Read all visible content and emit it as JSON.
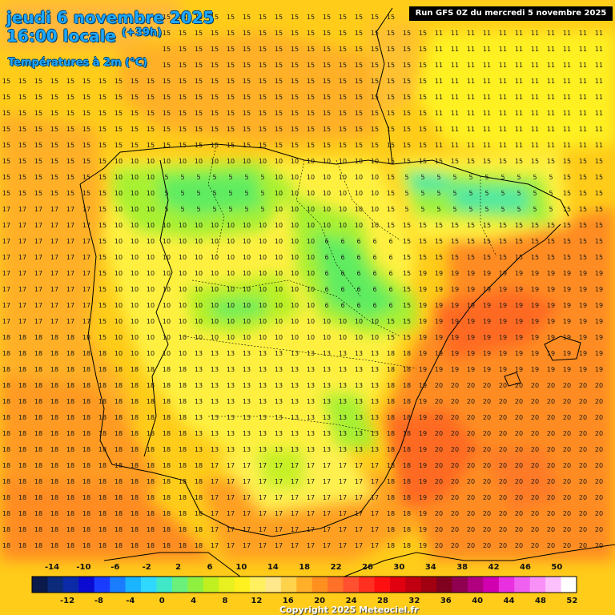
{
  "header": {
    "date": "jeudi 6 novembre 2025",
    "time": "16:00 locale",
    "offset": "(+39h)",
    "variable": "Températures à 2m (°C)",
    "run": "Run GFS 0Z du mercredi 5 novembre 2025"
  },
  "legend": {
    "top_labels": [
      "-14",
      "-10",
      "-6",
      "-2",
      "2",
      "6",
      "10",
      "14",
      "18",
      "22",
      "26",
      "30",
      "34",
      "38",
      "42",
      "46",
      "50"
    ],
    "bottom_labels": [
      "-12",
      "-8",
      "-4",
      "0",
      "4",
      "8",
      "12",
      "16",
      "20",
      "24",
      "28",
      "32",
      "36",
      "40",
      "44",
      "48",
      "52"
    ],
    "colors": [
      "#0a1a4a",
      "#0b2a7a",
      "#0b2aa8",
      "#0a0ad0",
      "#1a3cff",
      "#1a7cff",
      "#1ab4ff",
      "#30d8ff",
      "#40e8c8",
      "#6cf07c",
      "#90f040",
      "#c0f020",
      "#e8f020",
      "#fff020",
      "#fff060",
      "#ffe88c",
      "#ffd24c",
      "#ffb028",
      "#ff9020",
      "#ff7028",
      "#ff5030",
      "#ff3020",
      "#ff1010",
      "#e00010",
      "#c00010",
      "#a00010",
      "#800020",
      "#900050",
      "#b00080",
      "#d000b0",
      "#e830e0",
      "#f060f0",
      "#f890f8",
      "#fcc0fc",
      "#ffffff"
    ]
  },
  "copyright": "Copyright 2025 Meteociel.fr"
}
